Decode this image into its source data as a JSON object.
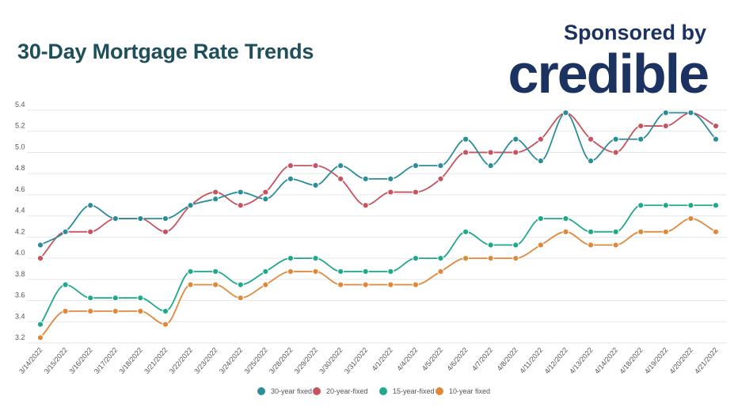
{
  "header": {
    "title": "30-Day Mortgage Rate Trends",
    "sponsor_label": "Sponsored by",
    "sponsor_logo": "credible"
  },
  "chart_data": {
    "type": "line",
    "title": "30-Day Mortgage Rate Trends",
    "xlabel": "",
    "ylabel": "",
    "ylim": [
      3.2,
      5.4
    ],
    "yticks": [
      "3.2",
      "3.4",
      "3.6",
      "3.8",
      "4.0",
      "4.2",
      "4.4",
      "4.6",
      "4.8",
      "5.0",
      "5.2",
      "5.4"
    ],
    "grid": true,
    "legend_position": "bottom",
    "categories": [
      "3/14/2022",
      "3/15/2022",
      "3/16/2022",
      "3/17/2022",
      "3/18/2022",
      "3/21/2022",
      "3/22/2022",
      "3/23/2022",
      "3/24/2022",
      "3/25/2022",
      "3/28/2022",
      "3/29/2022",
      "3/30/2022",
      "3/31/2022",
      "4/1/2022",
      "4/4/2022",
      "4/5/2022",
      "4/6/2022",
      "4/7/2022",
      "4/8/2022",
      "4/11/2022",
      "4/12/2022",
      "4/13/2022",
      "4/14/2022",
      "4/18/2022",
      "4/19/2022",
      "4/20/2022",
      "4/21/2022"
    ],
    "series": [
      {
        "name": "30-year fixed",
        "color": "#2a8d98",
        "values": [
          4.125,
          4.25,
          4.5,
          4.375,
          4.375,
          4.375,
          4.5,
          4.56,
          4.625,
          4.56,
          4.75,
          4.69,
          4.875,
          4.75,
          4.75,
          4.875,
          4.875,
          5.125,
          4.875,
          5.125,
          4.92,
          5.375,
          4.92,
          5.125,
          5.125,
          5.375,
          5.375,
          5.125
        ]
      },
      {
        "name": "20-year-fixed",
        "color": "#c9525f",
        "values": [
          4.0,
          4.25,
          4.25,
          4.375,
          4.375,
          4.25,
          4.5,
          4.625,
          4.5,
          4.625,
          4.875,
          4.875,
          4.75,
          4.5,
          4.625,
          4.625,
          4.75,
          5.0,
          5.0,
          5.0,
          5.125,
          5.375,
          5.125,
          5.0,
          5.25,
          5.25,
          5.375,
          5.25
        ]
      },
      {
        "name": "15-year-fixed",
        "color": "#1fa98c",
        "values": [
          3.375,
          3.75,
          3.625,
          3.625,
          3.625,
          3.5,
          3.875,
          3.875,
          3.75,
          3.875,
          4.0,
          4.0,
          3.875,
          3.875,
          3.875,
          4.0,
          4.0,
          4.25,
          4.125,
          4.125,
          4.375,
          4.375,
          4.25,
          4.25,
          4.5,
          4.5,
          4.5,
          4.5
        ]
      },
      {
        "name": "10-year fixed",
        "color": "#e0883a",
        "values": [
          3.25,
          3.5,
          3.5,
          3.5,
          3.5,
          3.375,
          3.75,
          3.75,
          3.625,
          3.75,
          3.875,
          3.875,
          3.75,
          3.75,
          3.75,
          3.75,
          3.875,
          4.0,
          4.0,
          4.0,
          4.125,
          4.25,
          4.125,
          4.125,
          4.25,
          4.25,
          4.375,
          4.25
        ]
      }
    ]
  }
}
